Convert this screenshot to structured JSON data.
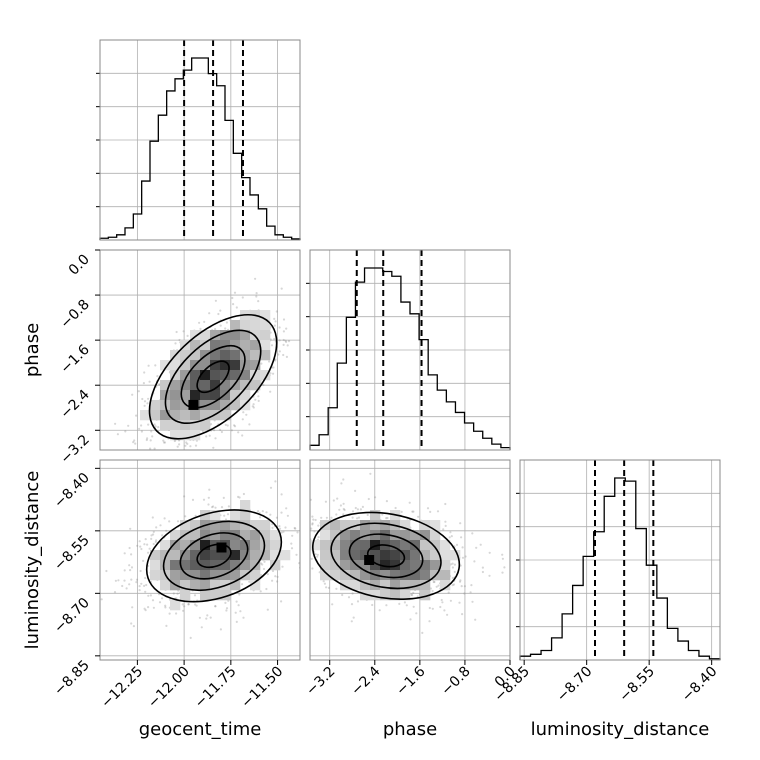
{
  "chart_data": {
    "type": "corner",
    "grid": true,
    "parameters": [
      {
        "name": "geocent_time",
        "axis_label": "geocent_time",
        "range": [
          -12.45,
          -11.38
        ],
        "ticks": [
          -12.25,
          -12.0,
          -11.75,
          -11.5
        ],
        "tick_labels": [
          "−12.25",
          "−12.00",
          "−11.75",
          "−11.50"
        ],
        "quantiles": [
          -12.0,
          -11.845,
          -11.685
        ],
        "histogram": [
          0.5,
          0.8,
          1.5,
          3.5,
          7.5,
          17,
          28.5,
          36,
          43,
          46.5,
          49,
          52.5,
          52.5,
          48,
          44.5,
          34.5,
          25,
          18,
          13,
          9,
          4,
          1.5,
          0.8,
          0.3
        ]
      },
      {
        "name": "phase",
        "axis_label": "phase",
        "range": [
          -3.55,
          0.0
        ],
        "ticks": [
          -3.2,
          -2.4,
          -1.6,
          -0.8,
          0.0
        ],
        "tick_labels": [
          "−3.2",
          "−2.4",
          "−1.6",
          "−0.8",
          "0.0"
        ],
        "quantiles": [
          -2.72,
          -2.25,
          -1.57
        ],
        "histogram": [
          0.4,
          1.3,
          3.6,
          7.4,
          11.3,
          14.3,
          15.5,
          15.5,
          15.2,
          14.8,
          12.6,
          11.6,
          9.4,
          6.4,
          5.1,
          4.1,
          3.2,
          2.3,
          1.6,
          1.0,
          0.5,
          0.2
        ]
      },
      {
        "name": "luminosity_distance",
        "axis_label": "luminosity_distance",
        "range": [
          -8.86,
          -8.38
        ],
        "ticks": [
          -8.85,
          -8.7,
          -8.55,
          -8.4
        ],
        "tick_labels": [
          "−8.85",
          "−8.70",
          "−8.55",
          "−8.40"
        ],
        "quantiles": [
          -8.68,
          -8.61,
          -8.54
        ],
        "histogram": [
          0.6,
          0.9,
          1.5,
          3.5,
          7.3,
          11.8,
          16.4,
          20.3,
          25.9,
          28.8,
          28.3,
          20.8,
          15.0,
          9.8,
          5.0,
          3.0,
          1.5,
          0.6,
          0.2
        ]
      }
    ],
    "pairs": [
      {
        "x": "geocent_time",
        "y": "phase",
        "mean": [
          -11.845,
          -2.25
        ],
        "std": [
          0.17,
          0.55
        ],
        "correlation": 0.55,
        "peak": [
          -11.95,
          -2.75
        ]
      },
      {
        "x": "geocent_time",
        "y": "luminosity_distance",
        "mean": [
          -11.84,
          -8.61
        ],
        "std": [
          0.18,
          0.055
        ],
        "correlation": 0.3,
        "peak": [
          -11.8,
          -8.59
        ]
      },
      {
        "x": "phase",
        "y": "luminosity_distance",
        "mean": [
          -2.2,
          -8.61
        ],
        "std": [
          0.65,
          0.052
        ],
        "correlation": -0.2,
        "peak": [
          -2.5,
          -8.62
        ]
      }
    ],
    "contour_levels": [
      0.118,
      0.393,
      0.675,
      0.865
    ]
  }
}
